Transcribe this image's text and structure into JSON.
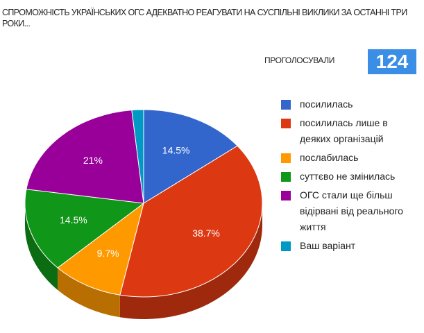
{
  "chart_data": {
    "type": "pie3d",
    "title": "СПРОМОЖНІСТЬ УКРАЇНСЬКИХ ОГС АДЕКВАТНО РЕАГУВАТИ НА СУСПІЛЬНІ ВИКЛИКИ ЗА ОСТАННІ ТРИ РОКИ...",
    "votes_label": "ПРОГОЛОСУВАЛИ",
    "votes": 124,
    "categories": [
      "посилилась",
      "посилилась лише в деяких організацій",
      "послабилась",
      "суттєво не змінилась",
      "ОГС стали ще більш відірвані від реального життя",
      "Ваш варіант"
    ],
    "values": [
      14.5,
      38.7,
      9.7,
      14.5,
      21,
      1.6
    ],
    "value_labels": [
      "14.5%",
      "38.7%",
      "9.7%",
      "14.5%",
      "21%",
      null
    ],
    "colors": [
      "#3366cc",
      "#dc3912",
      "#ff9900",
      "#109618",
      "#990099",
      "#0099c6"
    ]
  }
}
